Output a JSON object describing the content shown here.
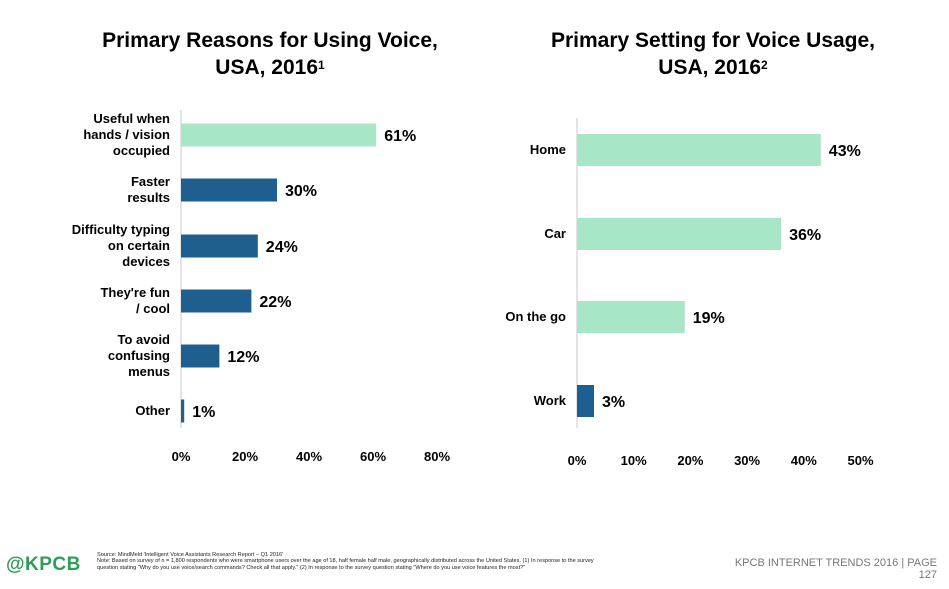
{
  "colors": {
    "light_bar": "#a8e6c8",
    "dark_bar": "#1f5f8f"
  },
  "left_title": {
    "line1": "Primary Reasons for Using Voice,",
    "line2": "USA, 2016",
    "sup": "1"
  },
  "right_title": {
    "line1": "Primary Setting for Voice Usage,",
    "line2": "USA, 2016",
    "sup": "2"
  },
  "chart_data": [
    {
      "type": "bar",
      "orientation": "horizontal",
      "title": "Primary Reasons for Using Voice, USA, 2016",
      "categories": [
        [
          "Useful when",
          "hands / vision",
          "occupied"
        ],
        [
          "Faster",
          "results"
        ],
        [
          "Difficulty typing",
          "on certain",
          "devices"
        ],
        [
          "They're fun",
          "/ cool"
        ],
        [
          "To avoid",
          "confusing",
          "menus"
        ],
        [
          "Other"
        ]
      ],
      "values": [
        61,
        30,
        24,
        22,
        12,
        1
      ],
      "value_labels": [
        "61%",
        "30%",
        "24%",
        "22%",
        "12%",
        "1%"
      ],
      "bar_colors": [
        "light",
        "dark",
        "dark",
        "dark",
        "dark",
        "dark"
      ],
      "xlim": [
        0,
        80
      ],
      "xticks": [
        "0%",
        "20%",
        "40%",
        "60%",
        "80%"
      ],
      "grid": false
    },
    {
      "type": "bar",
      "orientation": "horizontal",
      "title": "Primary Setting for Voice Usage, USA, 2016",
      "categories": [
        [
          "Home"
        ],
        [
          "Car"
        ],
        [
          "On the go"
        ],
        [
          "Work"
        ]
      ],
      "values": [
        43,
        36,
        19,
        3
      ],
      "value_labels": [
        "43%",
        "36%",
        "19%",
        "3%"
      ],
      "bar_colors": [
        "light",
        "light",
        "light",
        "dark"
      ],
      "xlim": [
        0,
        50
      ],
      "xticks": [
        "0%",
        "10%",
        "20%",
        "30%",
        "40%",
        "50%"
      ],
      "grid": false
    }
  ],
  "footer": {
    "logo": "@KPCB",
    "source_line1": "Source: MindMeld 'Intelligent Voice Assistants Research Report – Q1 2016'",
    "source_line2": "Note: Based on survey of n = 1,800 respondents who were smartphone users over the age of 18, half female half male, geographically distributed across the United States. (1) In response to the survey",
    "source_line3": "question stating \"Why do you use voice/search commands? Check all that apply.\" (2) In response to the survey question stating \"Where do you use voice features the most?\"",
    "report": "KPCB INTERNET TRENDS 2016  |  PAGE",
    "page": "127"
  }
}
